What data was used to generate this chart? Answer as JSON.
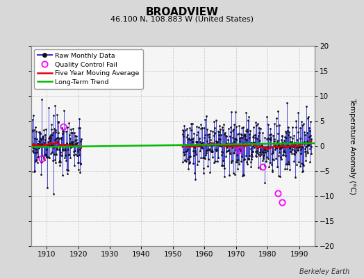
{
  "title": "BROADVIEW",
  "subtitle": "46.100 N, 108.883 W (United States)",
  "ylabel": "Temperature Anomaly (°C)",
  "watermark": "Berkeley Earth",
  "xlim": [
    1905,
    1995
  ],
  "ylim": [
    -20,
    20
  ],
  "yticks": [
    -20,
    -15,
    -10,
    -5,
    0,
    5,
    10,
    15,
    20
  ],
  "xticks": [
    1910,
    1920,
    1930,
    1940,
    1950,
    1960,
    1970,
    1980,
    1990
  ],
  "bg_color": "#d8d8d8",
  "plot_bg_color": "#f5f5f5",
  "raw_line_color": "#3333cc",
  "marker_color": "#111111",
  "qc_color": "#ff00ff",
  "moving_avg_color": "#dd0000",
  "trend_color": "#00bb00",
  "gap_start": 1921,
  "gap_end": 1953,
  "data_start": 1905,
  "data_end": 1993,
  "seed1": 17,
  "seed2": 83,
  "qc_points_period1": [
    [
      1915.25,
      3.9
    ],
    [
      1908.5,
      -2.5
    ]
  ],
  "qc_points_period2": [
    [
      1971.0,
      -0.8
    ],
    [
      1978.5,
      -4.2
    ],
    [
      1983.3,
      -9.5
    ],
    [
      1984.5,
      -11.2
    ]
  ]
}
